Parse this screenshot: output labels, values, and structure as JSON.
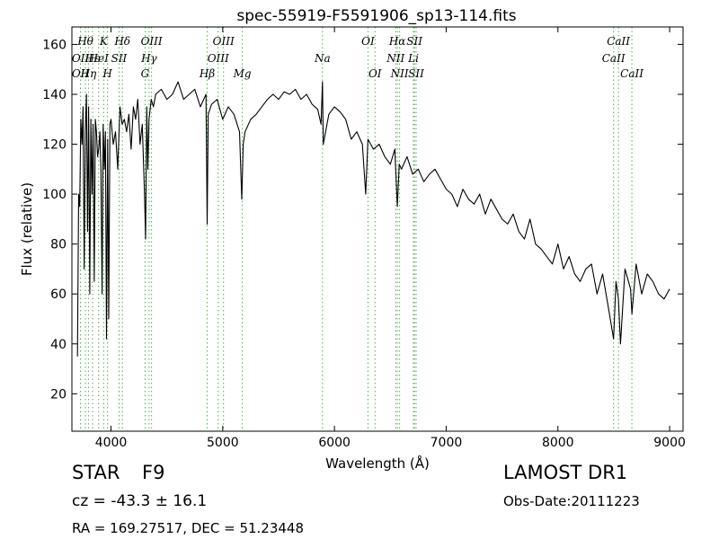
{
  "chart_data": {
    "type": "line",
    "title": "spec-55919-F5591906_sp13-114.fits",
    "xlabel": "Wavelength (Å)",
    "ylabel": "Flux (relative)",
    "xlim": [
      3650,
      9120
    ],
    "ylim": [
      5,
      167
    ],
    "xticks": [
      4000,
      5000,
      6000,
      7000,
      8000,
      9000
    ],
    "yticks": [
      20,
      40,
      60,
      80,
      100,
      120,
      140,
      160
    ],
    "grid": false,
    "line_color": "#000000",
    "marker_color": "#4caf50",
    "series": [
      {
        "x": [
          3700,
          3710,
          3720,
          3730,
          3740,
          3750,
          3760,
          3770,
          3780,
          3790,
          3800,
          3810,
          3820,
          3830,
          3840,
          3850,
          3860,
          3870,
          3880,
          3890,
          3900,
          3910,
          3920,
          3930,
          3940,
          3950,
          3960,
          3970,
          3980,
          3990,
          4000,
          4020,
          4040,
          4060,
          4080,
          4100,
          4120,
          4140,
          4160,
          4180,
          4200,
          4220,
          4240,
          4260,
          4280,
          4300,
          4310,
          4320,
          4330,
          4340,
          4360,
          4380,
          4400,
          4450,
          4500,
          4550,
          4600,
          4650,
          4700,
          4750,
          4800,
          4850,
          4861,
          4870,
          4900,
          4950,
          5000,
          5050,
          5100,
          5150,
          5170,
          5183,
          5200,
          5250,
          5300,
          5350,
          5400,
          5450,
          5500,
          5550,
          5600,
          5650,
          5700,
          5750,
          5800,
          5850,
          5880,
          5893,
          5900,
          5950,
          6000,
          6050,
          6100,
          6150,
          6200,
          6250,
          6280,
          6300,
          6350,
          6400,
          6450,
          6500,
          6540,
          6563,
          6580,
          6600,
          6650,
          6700,
          6750,
          6800,
          6850,
          6900,
          6950,
          7000,
          7050,
          7100,
          7150,
          7200,
          7250,
          7300,
          7350,
          7400,
          7450,
          7500,
          7550,
          7600,
          7650,
          7700,
          7750,
          7800,
          7850,
          7900,
          7950,
          8000,
          8050,
          8100,
          8150,
          8200,
          8250,
          8300,
          8350,
          8400,
          8450,
          8498,
          8520,
          8542,
          8560,
          8600,
          8650,
          8662,
          8700,
          8750,
          8800,
          8850,
          8900,
          8950,
          9000
        ],
        "y": [
          35,
          100,
          95,
          130,
          120,
          135,
          70,
          125,
          140,
          85,
          135,
          60,
          130,
          100,
          128,
          65,
          130,
          125,
          115,
          118,
          125,
          110,
          60,
          128,
          110,
          125,
          42,
          122,
          50,
          128,
          130,
          120,
          125,
          110,
          135,
          128,
          130,
          125,
          132,
          118,
          135,
          130,
          138,
          120,
          128,
          100,
          82,
          135,
          110,
          130,
          138,
          135,
          140,
          142,
          138,
          140,
          145,
          138,
          140,
          142,
          135,
          140,
          88,
          132,
          136,
          138,
          130,
          135,
          132,
          125,
          98,
          120,
          125,
          130,
          132,
          135,
          138,
          140,
          138,
          141,
          140,
          142,
          138,
          140,
          136,
          134,
          128,
          145,
          120,
          132,
          135,
          133,
          130,
          122,
          125,
          120,
          100,
          122,
          118,
          120,
          115,
          112,
          118,
          95,
          112,
          110,
          115,
          108,
          110,
          105,
          108,
          110,
          106,
          102,
          100,
          95,
          102,
          98,
          96,
          100,
          92,
          98,
          94,
          90,
          88,
          92,
          85,
          82,
          90,
          80,
          78,
          75,
          72,
          80,
          70,
          75,
          68,
          65,
          70,
          72,
          60,
          68,
          55,
          42,
          65,
          58,
          40,
          70,
          62,
          52,
          72,
          60,
          68,
          65,
          60,
          58,
          62
        ]
      }
    ],
    "lines": [
      {
        "x": 3727,
        "label": "OII",
        "row": "top2"
      },
      {
        "x": 3727,
        "label": "OII",
        "row": "top3"
      },
      {
        "x": 3771,
        "label": "Hθ",
        "row": "top1"
      },
      {
        "x": 3798,
        "label": "Hη",
        "row": "top3"
      },
      {
        "x": 3835,
        "label": "Hε",
        "row": "top2"
      },
      {
        "x": 3889,
        "label": "HeI",
        "row": "top2"
      },
      {
        "x": 3934,
        "label": "K",
        "row": "top1"
      },
      {
        "x": 3969,
        "label": "H",
        "row": "top3"
      },
      {
        "x": 4072,
        "label": "SII",
        "row": "top2"
      },
      {
        "x": 4102,
        "label": "Hδ",
        "row": "top1"
      },
      {
        "x": 4305,
        "label": "G",
        "row": "top3"
      },
      {
        "x": 4341,
        "label": "Hγ",
        "row": "top2"
      },
      {
        "x": 4363,
        "label": "OIII",
        "row": "top1"
      },
      {
        "x": 4861,
        "label": "Hβ",
        "row": "top3"
      },
      {
        "x": 4959,
        "label": "OIII",
        "row": "top2"
      },
      {
        "x": 5007,
        "label": "OIII",
        "row": "top1"
      },
      {
        "x": 5175,
        "label": "Mg",
        "row": "top3"
      },
      {
        "x": 5893,
        "label": "Na",
        "row": "top2"
      },
      {
        "x": 6300,
        "label": "OI",
        "row": "top1"
      },
      {
        "x": 6363,
        "label": "OI",
        "row": "top3"
      },
      {
        "x": 6548,
        "label": "NII",
        "row": "top2"
      },
      {
        "x": 6563,
        "label": "Hα",
        "row": "top1"
      },
      {
        "x": 6583,
        "label": "NII",
        "row": "top3"
      },
      {
        "x": 6707,
        "label": "Li",
        "row": "top2"
      },
      {
        "x": 6716,
        "label": "SII",
        "row": "top1"
      },
      {
        "x": 6731,
        "label": "SII",
        "row": "top3"
      },
      {
        "x": 8498,
        "label": "CaII",
        "row": "top2"
      },
      {
        "x": 8542,
        "label": "CaII",
        "row": "top1"
      },
      {
        "x": 8662,
        "label": "CaII",
        "row": "top3"
      }
    ]
  },
  "info": {
    "object_type": "STAR",
    "subclass": "F9",
    "redshift": "cz = -43.3 ± 16.1",
    "coordinates": "RA = 169.27517, DEC = 51.23448",
    "survey": "LAMOST DR1",
    "obs_date": "Obs-Date:20111223"
  }
}
